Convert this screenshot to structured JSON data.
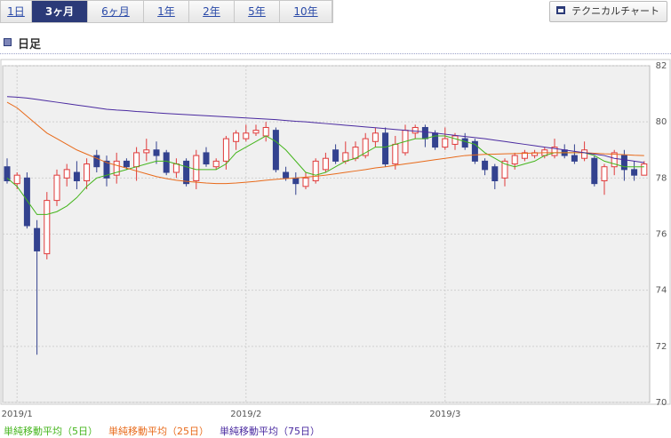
{
  "tabs": [
    "1日",
    "3ヶ月",
    "6ヶ月",
    "1年",
    "2年",
    "5年",
    "10年"
  ],
  "active_tab": 1,
  "technical_button": "テクニカルチャート",
  "heading": "日足",
  "chart_data": {
    "type": "candlestick",
    "categories": [
      null,
      "2019/1",
      null,
      null,
      null,
      null,
      null,
      null,
      null,
      null,
      null,
      null,
      null,
      null,
      null,
      null,
      null,
      null,
      null,
      null,
      null,
      null,
      null,
      null,
      "2019/2",
      null,
      null,
      null,
      null,
      null,
      null,
      null,
      null,
      null,
      null,
      null,
      null,
      null,
      null,
      null,
      null,
      null,
      null,
      null,
      "2019/3",
      null,
      null,
      null,
      null,
      null,
      null,
      null,
      null,
      null,
      null,
      null,
      null,
      null,
      null,
      null,
      null,
      null,
      null,
      null,
      null
    ],
    "open": [
      78.4,
      77.8,
      78.0,
      76.2,
      75.3,
      77.2,
      78.0,
      78.2,
      77.9,
      78.8,
      78.6,
      78.1,
      78.6,
      78.4,
      78.9,
      79.0,
      78.9,
      78.2,
      78.6,
      77.9,
      78.9,
      78.4,
      78.6,
      79.3,
      79.4,
      79.6,
      79.5,
      79.7,
      78.2,
      78.0,
      77.7,
      77.9,
      78.3,
      79.0,
      78.6,
      78.7,
      78.8,
      79.3,
      79.6,
      78.5,
      78.9,
      79.6,
      79.8,
      79.6,
      79.1,
      79.2,
      79.4,
      79.3,
      78.6,
      78.4,
      78.0,
      78.5,
      78.7,
      78.8,
      78.8,
      78.8,
      79.0,
      78.8,
      78.7,
      78.7,
      77.9,
      78.4,
      78.8,
      78.3,
      78.1
    ],
    "high": [
      78.7,
      78.2,
      78.2,
      76.5,
      77.5,
      78.3,
      78.5,
      78.6,
      78.7,
      79.0,
      78.8,
      78.9,
      78.7,
      79.1,
      79.4,
      79.3,
      79.0,
      78.7,
      78.7,
      79.0,
      79.1,
      78.7,
      79.5,
      79.7,
      79.9,
      79.9,
      80.0,
      79.8,
      78.4,
      78.2,
      78.2,
      78.7,
      78.9,
      79.2,
      79.3,
      79.3,
      79.6,
      79.8,
      79.8,
      79.5,
      79.9,
      79.9,
      79.9,
      79.7,
      79.8,
      79.6,
      79.6,
      79.4,
      78.7,
      78.5,
      78.7,
      78.9,
      79.0,
      79.0,
      79.1,
      79.4,
      79.2,
      79.2,
      79.3,
      78.8,
      78.5,
      79.0,
      79.0,
      78.6,
      78.6
    ],
    "low": [
      77.8,
      77.6,
      76.2,
      71.7,
      75.1,
      77.0,
      77.7,
      77.6,
      77.6,
      78.2,
      77.7,
      77.8,
      78.3,
      77.9,
      78.6,
      78.5,
      78.1,
      78.0,
      77.7,
      77.6,
      78.4,
      78.3,
      78.3,
      79.0,
      79.3,
      79.5,
      79.3,
      78.2,
      77.9,
      77.4,
      77.6,
      77.8,
      78.2,
      78.5,
      78.5,
      78.6,
      78.7,
      79.1,
      78.4,
      78.3,
      78.8,
      79.4,
      79.1,
      79.0,
      79.0,
      79.0,
      79.0,
      78.5,
      78.1,
      77.6,
      77.7,
      78.3,
      78.6,
      78.7,
      78.7,
      78.7,
      78.7,
      78.5,
      78.6,
      77.7,
      77.4,
      78.1,
      77.9,
      77.9,
      78.1
    ],
    "close": [
      77.9,
      78.1,
      76.3,
      75.4,
      77.2,
      78.1,
      78.3,
      77.9,
      78.5,
      78.4,
      78.0,
      78.6,
      78.4,
      78.9,
      79.0,
      78.8,
      78.2,
      78.5,
      77.8,
      78.8,
      78.5,
      78.6,
      79.4,
      79.6,
      79.6,
      79.7,
      79.8,
      78.3,
      78.0,
      77.8,
      78.0,
      78.6,
      78.7,
      78.6,
      78.9,
      79.1,
      79.4,
      79.6,
      78.5,
      79.2,
      79.7,
      79.8,
      79.4,
      79.1,
      79.4,
      79.5,
      79.1,
      78.6,
      78.3,
      77.9,
      78.6,
      78.8,
      78.9,
      78.9,
      79.0,
      79.1,
      78.8,
      78.6,
      79.0,
      77.8,
      78.4,
      78.9,
      78.3,
      78.1,
      78.5
    ],
    "up_color": "#e03a3a",
    "down_color": "#33428f",
    "series": [
      {
        "name": "単純移動平均（5日）",
        "color": "#44b51c",
        "values": [
          78.0,
          77.7,
          77.2,
          76.7,
          76.7,
          76.8,
          77.0,
          77.3,
          77.7,
          78.0,
          78.1,
          78.2,
          78.3,
          78.4,
          78.5,
          78.6,
          78.6,
          78.5,
          78.4,
          78.3,
          78.3,
          78.3,
          78.5,
          78.9,
          79.1,
          79.3,
          79.5,
          79.3,
          79.0,
          78.6,
          78.2,
          78.1,
          78.2,
          78.4,
          78.6,
          78.7,
          78.9,
          79.1,
          79.1,
          79.2,
          79.3,
          79.4,
          79.4,
          79.5,
          79.5,
          79.4,
          79.3,
          79.2,
          78.9,
          78.7,
          78.5,
          78.4,
          78.5,
          78.6,
          78.8,
          78.9,
          78.9,
          78.9,
          78.9,
          78.8,
          78.6,
          78.5,
          78.4,
          78.4,
          78.4
        ]
      },
      {
        "name": "単純移動平均（25日）",
        "color": "#e86a1a",
        "values": [
          80.7,
          80.5,
          80.2,
          79.9,
          79.6,
          79.4,
          79.2,
          79.0,
          78.85,
          78.7,
          78.55,
          78.45,
          78.35,
          78.25,
          78.15,
          78.05,
          77.98,
          77.92,
          77.88,
          77.85,
          77.82,
          77.8,
          77.8,
          77.82,
          77.85,
          77.88,
          77.92,
          77.95,
          77.98,
          78.0,
          78.03,
          78.06,
          78.1,
          78.15,
          78.2,
          78.25,
          78.3,
          78.36,
          78.4,
          78.45,
          78.5,
          78.55,
          78.6,
          78.65,
          78.7,
          78.75,
          78.8,
          78.82,
          78.84,
          78.85,
          78.86,
          78.87,
          78.88,
          78.89,
          78.9,
          78.9,
          78.9,
          78.9,
          78.9,
          78.88,
          78.86,
          78.85,
          78.83,
          78.81,
          78.8
        ]
      },
      {
        "name": "単純移動平均（75日）",
        "color": "#4a2aa0",
        "values": [
          80.9,
          80.88,
          80.85,
          80.8,
          80.75,
          80.7,
          80.65,
          80.6,
          80.55,
          80.5,
          80.45,
          80.42,
          80.4,
          80.37,
          80.35,
          80.32,
          80.3,
          80.28,
          80.26,
          80.24,
          80.22,
          80.2,
          80.18,
          80.16,
          80.14,
          80.12,
          80.1,
          80.08,
          80.05,
          80.02,
          80.0,
          79.97,
          79.94,
          79.91,
          79.88,
          79.85,
          79.82,
          79.79,
          79.76,
          79.73,
          79.7,
          79.67,
          79.64,
          79.6,
          79.56,
          79.52,
          79.48,
          79.44,
          79.4,
          79.35,
          79.3,
          79.25,
          79.2,
          79.15,
          79.1,
          79.05,
          79.0,
          78.95,
          78.9,
          78.85,
          78.8,
          78.7,
          78.65,
          78.6,
          78.55
        ]
      }
    ],
    "ylim": [
      70,
      82
    ],
    "yticks": [
      70,
      72,
      74,
      76,
      78,
      80,
      82
    ],
    "grid": true
  }
}
